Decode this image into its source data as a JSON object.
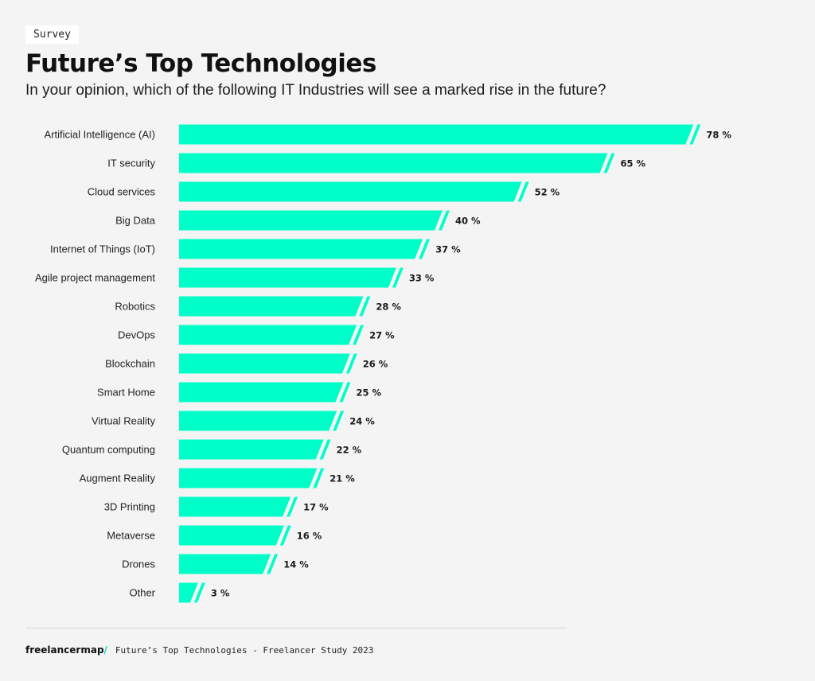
{
  "header": {
    "tag": "Survey",
    "title": "Future’s Top Technologies",
    "subtitle": "In your opinion, which of the following IT Industries will see a marked rise in the future?"
  },
  "footer": {
    "brand": "freelancermap",
    "brand_slash": "/",
    "caption": "Future’s Top Technologies - Freelancer Study 2023"
  },
  "colors": {
    "bar": "#00ffc8",
    "background": "#f4f4f4"
  },
  "chart_data": {
    "type": "bar",
    "orientation": "horizontal",
    "categories": [
      "Artificial Intelligence (AI)",
      "IT security",
      "Cloud services",
      "Big Data",
      "Internet of Things (IoT)",
      "Agile project management",
      "Robotics",
      "DevOps",
      "Blockchain",
      "Smart Home",
      "Virtual Reality",
      "Quantum computing",
      "Augment Reality",
      "3D Printing",
      "Metaverse",
      "Drones",
      "Other"
    ],
    "values": [
      78,
      65,
      52,
      40,
      37,
      33,
      28,
      27,
      26,
      25,
      24,
      22,
      21,
      17,
      16,
      14,
      3
    ],
    "value_labels": [
      "78 %",
      "65 %",
      "52 %",
      "40 %",
      "37 %",
      "33 %",
      "28 %",
      "27 %",
      "26 %",
      "25 %",
      "24 %",
      "22 %",
      "21 %",
      "17 %",
      "16 %",
      "14 %",
      "3 %"
    ],
    "unit": "%",
    "grid": false,
    "legend": "none"
  }
}
